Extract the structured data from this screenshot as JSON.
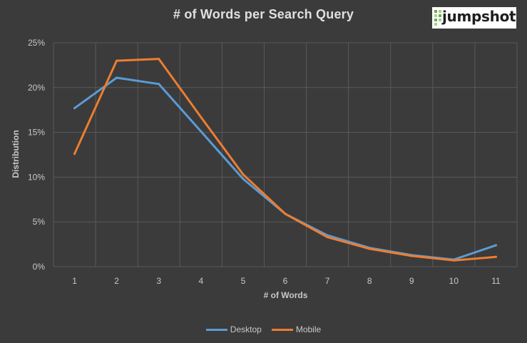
{
  "logo": {
    "text": "jumpshot",
    "icon": "jumpshot-logo-icon"
  },
  "colors": {
    "desktop": "#5b9bd5",
    "mobile": "#ed7d31",
    "grid": "#5a5a5a",
    "text": "#c8c8c8",
    "background": "#3b3b3b"
  },
  "chart_data": {
    "type": "line",
    "title": "# of Words per Search Query",
    "xlabel": "# of Words",
    "ylabel": "Distribution",
    "categories": [
      "1",
      "2",
      "3",
      "4",
      "5",
      "6",
      "7",
      "8",
      "9",
      "10",
      "11"
    ],
    "y_tick_labels": [
      "0%",
      "5%",
      "10%",
      "15%",
      "20%",
      "25%"
    ],
    "ylim": [
      0,
      25
    ],
    "grid": true,
    "legend_position": "bottom",
    "series": [
      {
        "name": "Desktop",
        "color": "#5b9bd5",
        "values": [
          17.7,
          21.1,
          20.4,
          15.1,
          9.8,
          5.9,
          3.5,
          2.1,
          1.3,
          0.8,
          2.4
        ]
      },
      {
        "name": "Mobile",
        "color": "#ed7d31",
        "values": [
          12.6,
          23.0,
          23.2,
          16.7,
          10.3,
          5.9,
          3.3,
          2.0,
          1.2,
          0.7,
          1.1
        ]
      }
    ]
  }
}
